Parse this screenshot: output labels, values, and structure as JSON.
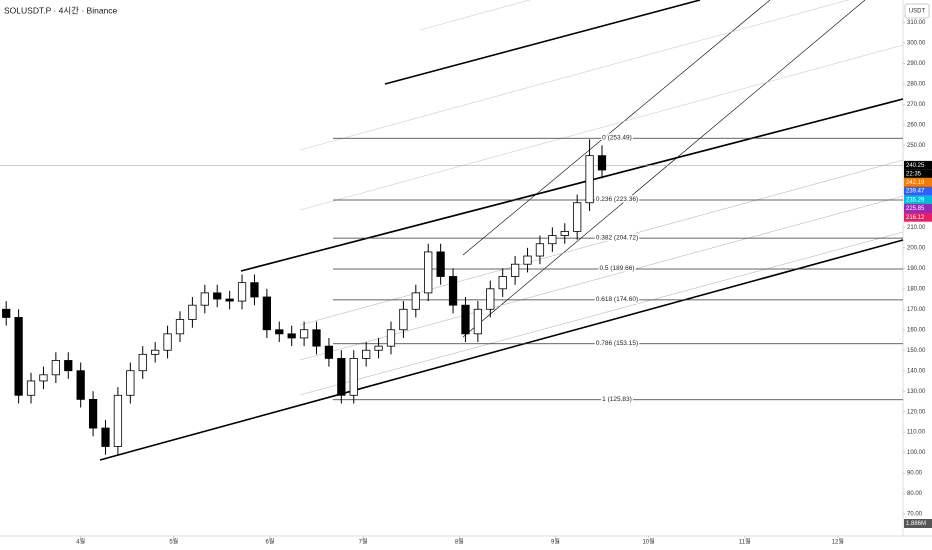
{
  "chart_data": {
    "type": "candlestick",
    "title": "SOLUSDT.P · 4시간 · Binance",
    "y_axis_label": "USDT",
    "x": [
      -24,
      -20,
      -16,
      -12,
      -8,
      -4,
      0,
      4,
      8,
      12,
      16,
      20,
      24,
      28,
      32,
      36,
      40,
      44,
      48,
      52,
      56,
      60,
      64,
      68,
      72,
      76,
      80,
      84,
      88,
      92,
      96,
      100,
      104,
      108,
      112,
      116,
      120,
      124,
      128,
      132,
      136,
      140,
      144,
      148,
      152,
      156,
      160,
      164,
      168
    ],
    "open": [
      170,
      166,
      128,
      135,
      138,
      145,
      140,
      126,
      112,
      103,
      128,
      140,
      148,
      150,
      158,
      165,
      172,
      178,
      175,
      174,
      183,
      176,
      160,
      158,
      156,
      160,
      152,
      146,
      128,
      146,
      150,
      152,
      160,
      170,
      178,
      198,
      186,
      172,
      158,
      170,
      180,
      186,
      192,
      196,
      202,
      206,
      208,
      222,
      245
    ],
    "high": [
      174,
      170,
      139,
      142,
      149,
      149,
      144,
      130,
      116,
      132,
      144,
      152,
      154,
      162,
      169,
      176,
      182,
      182,
      179,
      187,
      187,
      180,
      164,
      162,
      164,
      164,
      156,
      150,
      150,
      154,
      156,
      164,
      174,
      182,
      202,
      202,
      190,
      176,
      174,
      184,
      190,
      196,
      200,
      206,
      210,
      212,
      226,
      253,
      250
    ],
    "low": [
      162,
      124,
      124,
      131,
      134,
      136,
      122,
      108,
      99,
      99,
      124,
      136,
      144,
      146,
      154,
      161,
      168,
      171,
      170,
      170,
      172,
      156,
      154,
      152,
      152,
      148,
      142,
      124,
      124,
      142,
      146,
      148,
      156,
      166,
      174,
      182,
      168,
      154,
      154,
      166,
      176,
      182,
      188,
      192,
      198,
      202,
      204,
      218,
      234
    ],
    "close": [
      166,
      128,
      135,
      138,
      145,
      140,
      126,
      112,
      103,
      128,
      140,
      148,
      150,
      158,
      165,
      172,
      178,
      175,
      174,
      183,
      176,
      160,
      158,
      156,
      160,
      152,
      146,
      128,
      146,
      150,
      152,
      160,
      170,
      178,
      198,
      186,
      172,
      158,
      170,
      180,
      186,
      192,
      196,
      202,
      206,
      208,
      222,
      245,
      238
    ],
    "up_color": "#ffffff",
    "down_color": "#000000",
    "wick_color": "#000000",
    "xlim": [
      -26,
      265
    ],
    "xticks": [
      {
        "value": 0,
        "label": "4월"
      },
      {
        "value": 30,
        "label": "5월"
      },
      {
        "value": 61,
        "label": "6월"
      },
      {
        "value": 91,
        "label": "7월"
      },
      {
        "value": 122,
        "label": "8월"
      },
      {
        "value": 153,
        "label": "9월"
      },
      {
        "value": 183,
        "label": "10월"
      },
      {
        "value": 214,
        "label": "11월"
      },
      {
        "value": 244,
        "label": "12월"
      }
    ],
    "ylim": [
      59.3,
      321
    ],
    "yticks": [
      {
        "value": 70,
        "label": "70.00"
      },
      {
        "value": 80,
        "label": "80.00"
      },
      {
        "value": 90,
        "label": "90.00"
      },
      {
        "value": 100,
        "label": "100.00"
      },
      {
        "value": 110,
        "label": "110.00"
      },
      {
        "value": 120,
        "label": "120.00"
      },
      {
        "value": 130,
        "label": "130.00"
      },
      {
        "value": 140,
        "label": "140.00"
      },
      {
        "value": 150,
        "label": "150.00"
      },
      {
        "value": 160,
        "label": "160.00"
      },
      {
        "value": 170,
        "label": "170.00"
      },
      {
        "value": 180,
        "label": "180.00"
      },
      {
        "value": 190,
        "label": "190.00"
      },
      {
        "value": 200,
        "label": "200.00"
      },
      {
        "value": 210,
        "label": "210.00"
      },
      {
        "value": 250,
        "label": "250.00"
      },
      {
        "value": 260,
        "label": "260.00"
      },
      {
        "value": 270,
        "label": "270.00"
      },
      {
        "value": 280,
        "label": "280.00"
      },
      {
        "value": 290,
        "label": "290.00"
      },
      {
        "value": 300,
        "label": "300.00"
      },
      {
        "value": 310,
        "label": "310.00"
      }
    ],
    "fib_levels": [
      {
        "value": 253.49,
        "label": "0 (253.49)"
      },
      {
        "value": 223.36,
        "label": "0.236 (223.36)"
      },
      {
        "value": 204.72,
        "label": "0.382 (204.72)"
      },
      {
        "value": 189.66,
        "label": "0.5 (189.66)"
      },
      {
        "value": 174.6,
        "label": "0.618 (174.60)"
      },
      {
        "value": 153.15,
        "label": "0.786 (153.15)"
      },
      {
        "value": 125.83,
        "label": "1 (125.83)"
      }
    ],
    "last_price": {
      "value": 240.25,
      "label": "240.25",
      "color": "#000000"
    },
    "countdown": "22:35",
    "price_tags": [
      {
        "value": 242.19,
        "label": "242.19",
        "color": "#f57c00"
      },
      {
        "value": 239.47,
        "label": "239.47",
        "color": "#2962ff"
      },
      {
        "value": 235.29,
        "label": "235.29",
        "color": "#00bcd4"
      },
      {
        "value": 225.85,
        "label": "225.85",
        "color": "#9c27b0"
      },
      {
        "value": 216.12,
        "label": "216.12",
        "color": "#e91e63"
      }
    ],
    "volume_tag": "1.886M"
  }
}
